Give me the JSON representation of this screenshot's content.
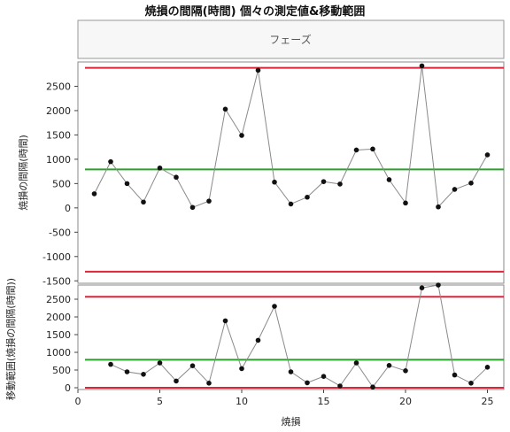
{
  "title": "焼損の間隔(時間) 個々の測定値&移動範囲",
  "phase_label": "フェーズ",
  "chart_data": [
    {
      "type": "line",
      "panel": "individuals",
      "ylabel": "焼損の間隔(時間)",
      "ylim": [
        -1550,
        3000
      ],
      "yticks": [
        2500,
        2000,
        1500,
        1000,
        500,
        0,
        -500,
        -1000,
        -1500
      ],
      "x": [
        1,
        2,
        3,
        4,
        5,
        6,
        7,
        8,
        9,
        10,
        11,
        12,
        13,
        14,
        15,
        16,
        17,
        18,
        19,
        20,
        21,
        22,
        23,
        24,
        25
      ],
      "values": [
        290,
        950,
        500,
        120,
        820,
        630,
        10,
        140,
        2030,
        1490,
        2830,
        530,
        80,
        220,
        540,
        490,
        1190,
        1210,
        580,
        100,
        2920,
        20,
        380,
        510,
        1090
      ],
      "center_line": 790,
      "ucl": 2880,
      "lcl": -1310
    },
    {
      "type": "line",
      "panel": "moving_range",
      "ylabel": "移動範囲(焼損の間隔(時間))",
      "ylim": [
        -50,
        2900
      ],
      "yticks": [
        2500,
        2000,
        1500,
        1000,
        500,
        0
      ],
      "x": [
        2,
        3,
        4,
        5,
        6,
        7,
        8,
        9,
        10,
        11,
        12,
        13,
        14,
        15,
        16,
        17,
        18,
        19,
        20,
        21,
        22,
        23,
        24,
        25
      ],
      "values": [
        660,
        450,
        380,
        700,
        190,
        620,
        130,
        1890,
        540,
        1340,
        2300,
        450,
        140,
        320,
        50,
        700,
        20,
        630,
        480,
        2820,
        2900,
        360,
        130,
        580
      ],
      "center_line": 790,
      "ucl": 2570,
      "lcl": 0
    }
  ],
  "x_axis": {
    "label": "焼損",
    "xlim": [
      0,
      26
    ],
    "ticks": [
      0,
      5,
      10,
      15,
      20,
      25
    ]
  },
  "colors": {
    "limit": "#d9263a",
    "center": "#2aa02a",
    "series": "#8a8a8a",
    "point": "#111111",
    "frame": "#888888",
    "phase_bg": "#f7f7f7"
  }
}
